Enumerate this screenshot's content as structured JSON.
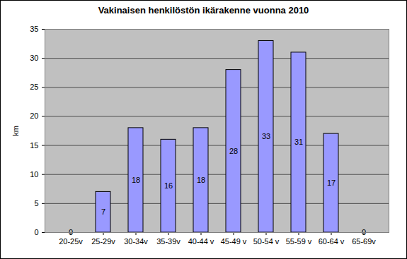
{
  "chart_data": {
    "type": "bar",
    "title": "Vakinaisen henkilöstön ikärakenne vuonna 2010",
    "y_label": "km",
    "categories": [
      "20-25v",
      "25-29v",
      "30-34v",
      "35-39v",
      "40-44 v",
      "45-49 v",
      "50-54 v",
      "55-59 v",
      "60-64 v",
      "65-69v"
    ],
    "values": [
      0,
      7,
      18,
      16,
      18,
      28,
      33,
      31,
      17,
      0
    ],
    "color": "#9999ff",
    "ylim": [
      0,
      35
    ],
    "yticks": [
      0,
      5,
      10,
      15,
      20,
      25,
      30,
      35
    ],
    "grid": true,
    "data_labels": true
  }
}
